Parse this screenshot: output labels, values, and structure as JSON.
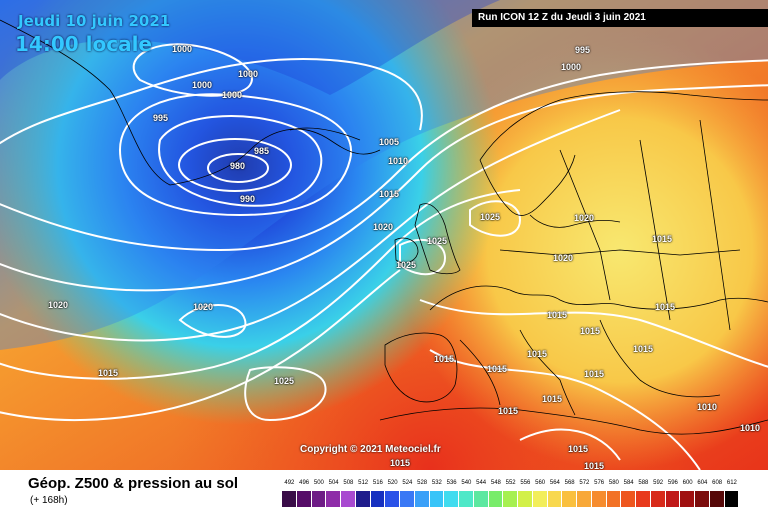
{
  "header": {
    "date": "Jeudi 10 juin 2021",
    "time": "14:00 locale",
    "run": "Run ICON 12 Z du Jeudi 3 juin 2021"
  },
  "copyright": "Copyright © 2021 Meteociel.fr",
  "footer": {
    "title": "Géop. Z500 & pression au sol",
    "subtitle": "(+ 168h)"
  },
  "pressure_labels": [
    "1000",
    "1000",
    "1000",
    "1000",
    "995",
    "985",
    "980",
    "990",
    "1005",
    "1010",
    "1015",
    "1020",
    "1025",
    "1025",
    "1025",
    "995",
    "1000",
    "1020",
    "1020",
    "1015",
    "1020",
    "1015",
    "1020",
    "1025",
    "1015",
    "1015",
    "1015",
    "1015",
    "1015",
    "1015",
    "1015",
    "1015",
    "1015",
    "1015",
    "1015",
    "1010",
    "1010",
    "1015",
    "1015"
  ],
  "scale": {
    "ticks": [
      "492",
      "496",
      "500",
      "504",
      "508",
      "512",
      "516",
      "520",
      "524",
      "528",
      "532",
      "536",
      "540",
      "544",
      "548",
      "552",
      "556",
      "560",
      "564",
      "568",
      "572",
      "576",
      "580",
      "584",
      "588",
      "592",
      "596",
      "600",
      "604",
      "608",
      "612"
    ],
    "colors": [
      "#3a0c48",
      "#560c68",
      "#6e1b86",
      "#8e2ca8",
      "#a84ad0",
      "#1f1c8c",
      "#1630c0",
      "#2a52e8",
      "#3a78f5",
      "#3aa0f8",
      "#38c4f8",
      "#40dcef",
      "#4ee8c8",
      "#5ce8a0",
      "#78ec6a",
      "#a6f050",
      "#d2f048",
      "#f2ee5a",
      "#f8d84e",
      "#fac03e",
      "#f8a838",
      "#f68c2e",
      "#f27226",
      "#ee561e",
      "#e83a1c",
      "#d82a1a",
      "#c01818",
      "#a01010",
      "#7c0c0c",
      "#560808",
      "#000000"
    ]
  }
}
